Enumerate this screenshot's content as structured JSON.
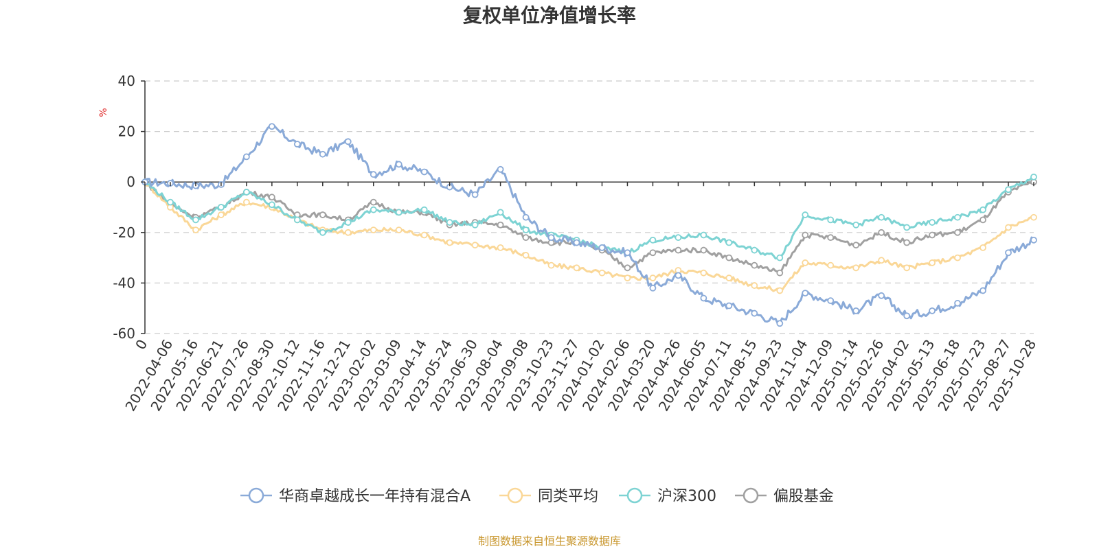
{
  "chart_data": {
    "type": "line",
    "title": "复权单位净值增长率",
    "ylabel": "%",
    "ylim": [
      -60,
      40
    ],
    "yticks": [
      40,
      20,
      0,
      -20,
      -40,
      -60
    ],
    "grid": true,
    "legend_position": "bottom",
    "source_note": "制图数据来自恒生聚源数据库",
    "categories": [
      "0",
      "2022-04-06",
      "2022-05-16",
      "2022-06-21",
      "2022-07-26",
      "2022-08-30",
      "2022-10-12",
      "2022-11-16",
      "2022-12-21",
      "2023-02-02",
      "2023-03-09",
      "2023-04-14",
      "2023-05-24",
      "2023-06-30",
      "2023-08-04",
      "2023-09-08",
      "2023-10-23",
      "2023-11-27",
      "2024-01-02",
      "2024-02-06",
      "2024-03-20",
      "2024-04-26",
      "2024-06-05",
      "2024-07-11",
      "2024-08-15",
      "2024-09-23",
      "2024-11-04",
      "2024-12-09",
      "2025-01-14",
      "2025-02-26",
      "2025-04-02",
      "2025-05-13",
      "2025-06-18",
      "2025-07-23",
      "2025-08-27",
      "2025-10-28"
    ],
    "series": [
      {
        "name": "华商卓越成长一年持有混合A",
        "color": "#8aaad8",
        "values": [
          0,
          -0.5,
          -1.5,
          -1,
          10,
          22,
          15,
          11,
          16,
          3,
          7,
          4,
          -2,
          -5,
          5,
          -14,
          -22,
          -24,
          -26,
          -28,
          -42,
          -37,
          -46,
          -49,
          -52,
          -56,
          -44,
          -47,
          -51,
          -45,
          -53,
          -51,
          -48,
          -43,
          -28,
          -23
        ]
      },
      {
        "name": "同类平均",
        "color": "#fad797",
        "values": [
          0,
          -10,
          -19,
          -13,
          -8,
          -10,
          -15,
          -19,
          -20,
          -19,
          -19,
          -21,
          -24,
          -25,
          -26,
          -29,
          -33,
          -34,
          -36,
          -38,
          -38,
          -35,
          -36,
          -38,
          -41,
          -43,
          -32,
          -33,
          -34,
          -31,
          -34,
          -32,
          -30,
          -26,
          -18,
          -14
        ]
      },
      {
        "name": "沪深300",
        "color": "#7dd3d3",
        "values": [
          0,
          -8,
          -15,
          -10,
          -4,
          -9,
          -15,
          -20,
          -16,
          -11,
          -12,
          -11,
          -16,
          -17,
          -12,
          -19,
          -21,
          -23,
          -26,
          -28,
          -23,
          -22,
          -21,
          -24,
          -27,
          -30,
          -13,
          -15,
          -17,
          -14,
          -18,
          -16,
          -14,
          -11,
          -3,
          2
        ]
      },
      {
        "name": "偏股基金",
        "color": "#a0a0a0",
        "values": [
          0,
          -9,
          -14,
          -10,
          -4,
          -6,
          -13,
          -13,
          -15,
          -8,
          -12,
          -12,
          -17,
          -16,
          -17,
          -22,
          -24,
          -24,
          -27,
          -34,
          -28,
          -27,
          -27,
          -30,
          -33,
          -36,
          -21,
          -22,
          -25,
          -20,
          -24,
          -21,
          -20,
          -15,
          -4,
          0
        ]
      }
    ]
  }
}
